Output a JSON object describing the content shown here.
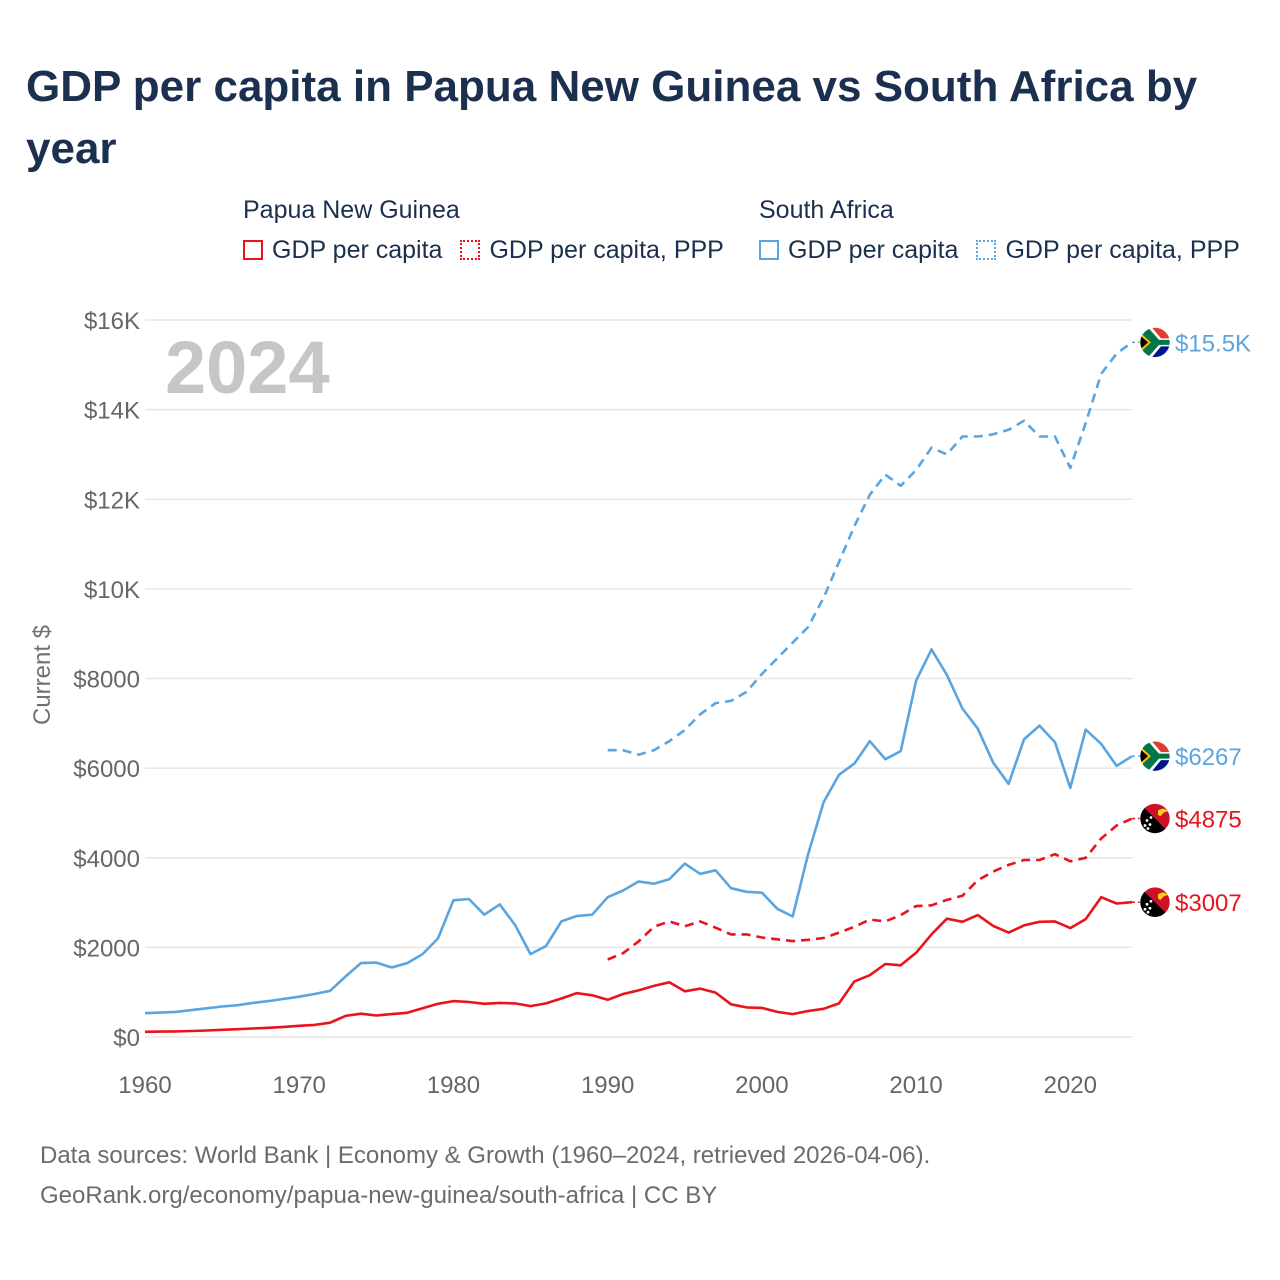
{
  "title": "GDP per capita in Papua New Guinea vs South Africa by year",
  "year_label": "2024",
  "legend": {
    "groups": [
      {
        "name": "Papua New Guinea",
        "items": [
          {
            "label": "GDP per capita",
            "style": "solid",
            "color": "#e8141c"
          },
          {
            "label": "GDP per capita, PPP",
            "style": "dotted",
            "color": "#e8141c"
          }
        ]
      },
      {
        "name": "South Africa",
        "items": [
          {
            "label": "GDP per capita",
            "style": "solid",
            "color": "#5aa5e0"
          },
          {
            "label": "GDP per capita, PPP",
            "style": "dotted",
            "color": "#5aa5e0"
          }
        ]
      }
    ]
  },
  "source": {
    "line1": "Data sources: World Bank | Economy & Growth (1960–2024, retrieved 2026-04-06).",
    "line2": "GeoRank.org/economy/papua-new-guinea/south-africa | CC BY"
  },
  "chart_data": {
    "type": "line",
    "title": "GDP per capita in Papua New Guinea vs South Africa by year",
    "xlabel": "",
    "ylabel": "Current $",
    "xlim": [
      1960,
      2024
    ],
    "ylim": [
      0,
      16000
    ],
    "x_ticks": [
      1960,
      1970,
      1980,
      1990,
      2000,
      2010,
      2020
    ],
    "y_ticks": [
      {
        "value": 0,
        "label": "$0"
      },
      {
        "value": 2000,
        "label": "$2000"
      },
      {
        "value": 4000,
        "label": "$4000"
      },
      {
        "value": 6000,
        "label": "$6000"
      },
      {
        "value": 8000,
        "label": "$8000"
      },
      {
        "value": 10000,
        "label": "$10K"
      },
      {
        "value": 12000,
        "label": "$12K"
      },
      {
        "value": 14000,
        "label": "$14K"
      },
      {
        "value": 16000,
        "label": "$16K"
      }
    ],
    "grid": true,
    "series": [
      {
        "name": "South Africa GDP per capita, PPP",
        "country": "South Africa",
        "color": "#5aa5e0",
        "dash": "dashed",
        "end_label": "$15.5K",
        "flag": "south-africa",
        "x": [
          1990,
          1991,
          1992,
          1993,
          1994,
          1995,
          1996,
          1997,
          1998,
          1999,
          2000,
          2001,
          2002,
          2003,
          2004,
          2005,
          2006,
          2007,
          2008,
          2009,
          2010,
          2011,
          2012,
          2013,
          2014,
          2015,
          2016,
          2017,
          2018,
          2019,
          2020,
          2021,
          2022,
          2023,
          2024
        ],
        "values": [
          6400,
          6400,
          6300,
          6400,
          6600,
          6850,
          7200,
          7450,
          7500,
          7700,
          8100,
          8450,
          8800,
          9150,
          9800,
          10600,
          11400,
          12100,
          12550,
          12300,
          12650,
          13150,
          13000,
          13400,
          13400,
          13450,
          13550,
          13750,
          13400,
          13400,
          12700,
          13700,
          14800,
          15250,
          15500
        ]
      },
      {
        "name": "South Africa GDP per capita",
        "country": "South Africa",
        "color": "#5aa5e0",
        "dash": "solid",
        "end_label": "$6267",
        "flag": "south-africa",
        "x": [
          1960,
          1961,
          1962,
          1963,
          1964,
          1965,
          1966,
          1967,
          1968,
          1969,
          1970,
          1971,
          1972,
          1973,
          1974,
          1975,
          1976,
          1977,
          1978,
          1979,
          1980,
          1981,
          1982,
          1983,
          1984,
          1985,
          1986,
          1987,
          1988,
          1989,
          1990,
          1991,
          1992,
          1993,
          1994,
          1995,
          1996,
          1997,
          1998,
          1999,
          2000,
          2001,
          2002,
          2003,
          2004,
          2005,
          2006,
          2007,
          2008,
          2009,
          2010,
          2011,
          2012,
          2013,
          2014,
          2015,
          2016,
          2017,
          2018,
          2019,
          2020,
          2021,
          2022,
          2023,
          2024
        ],
        "values": [
          530,
          545,
          560,
          600,
          640,
          680,
          710,
          760,
          800,
          850,
          900,
          960,
          1030,
          1350,
          1650,
          1660,
          1550,
          1650,
          1850,
          2200,
          3050,
          3080,
          2730,
          2960,
          2500,
          1850,
          2030,
          2580,
          2700,
          2730,
          3120,
          3270,
          3470,
          3420,
          3520,
          3870,
          3640,
          3720,
          3320,
          3240,
          3220,
          2860,
          2690,
          4080,
          5240,
          5850,
          6100,
          6600,
          6200,
          6380,
          7950,
          8650,
          8080,
          7330,
          6880,
          6120,
          5650,
          6640,
          6950,
          6580,
          5560,
          6860,
          6540,
          6050,
          6267
        ]
      },
      {
        "name": "Papua New Guinea GDP per capita, PPP",
        "country": "Papua New Guinea",
        "color": "#e8141c",
        "dash": "dashed",
        "end_label": "$4875",
        "flag": "papua-new-guinea",
        "x": [
          1990,
          1991,
          1992,
          1993,
          1994,
          1995,
          1996,
          1997,
          1998,
          1999,
          2000,
          2001,
          2002,
          2003,
          2004,
          2005,
          2006,
          2007,
          2008,
          2009,
          2010,
          2011,
          2012,
          2013,
          2014,
          2015,
          2016,
          2017,
          2018,
          2019,
          2020,
          2021,
          2022,
          2023,
          2024
        ],
        "values": [
          1730,
          1870,
          2130,
          2460,
          2580,
          2470,
          2580,
          2440,
          2290,
          2290,
          2220,
          2180,
          2140,
          2170,
          2210,
          2330,
          2460,
          2620,
          2580,
          2720,
          2920,
          2940,
          3060,
          3150,
          3500,
          3690,
          3840,
          3950,
          3950,
          4080,
          3920,
          4000,
          4430,
          4720,
          4875
        ]
      },
      {
        "name": "Papua New Guinea GDP per capita",
        "country": "Papua New Guinea",
        "color": "#e8141c",
        "dash": "solid",
        "end_label": "$3007",
        "flag": "papua-new-guinea",
        "x": [
          1960,
          1961,
          1962,
          1963,
          1964,
          1965,
          1966,
          1967,
          1968,
          1969,
          1970,
          1971,
          1972,
          1973,
          1974,
          1975,
          1976,
          1977,
          1978,
          1979,
          1980,
          1981,
          1982,
          1983,
          1984,
          1985,
          1986,
          1987,
          1988,
          1989,
          1990,
          1991,
          1992,
          1993,
          1994,
          1995,
          1996,
          1997,
          1998,
          1999,
          2000,
          2001,
          2002,
          2003,
          2004,
          2005,
          2006,
          2007,
          2008,
          2009,
          2010,
          2011,
          2012,
          2013,
          2014,
          2015,
          2016,
          2017,
          2018,
          2019,
          2020,
          2021,
          2022,
          2023,
          2024
        ],
        "values": [
          115,
          120,
          125,
          135,
          145,
          160,
          175,
          190,
          205,
          225,
          250,
          270,
          320,
          470,
          520,
          480,
          510,
          540,
          640,
          740,
          800,
          780,
          740,
          760,
          750,
          690,
          750,
          860,
          980,
          930,
          830,
          960,
          1040,
          1140,
          1220,
          1020,
          1080,
          990,
          730,
          660,
          650,
          560,
          510,
          580,
          630,
          750,
          1240,
          1380,
          1630,
          1600,
          1880,
          2290,
          2640,
          2570,
          2720,
          2480,
          2330,
          2490,
          2570,
          2580,
          2430,
          2630,
          3120,
          2980,
          3007
        ]
      }
    ]
  }
}
